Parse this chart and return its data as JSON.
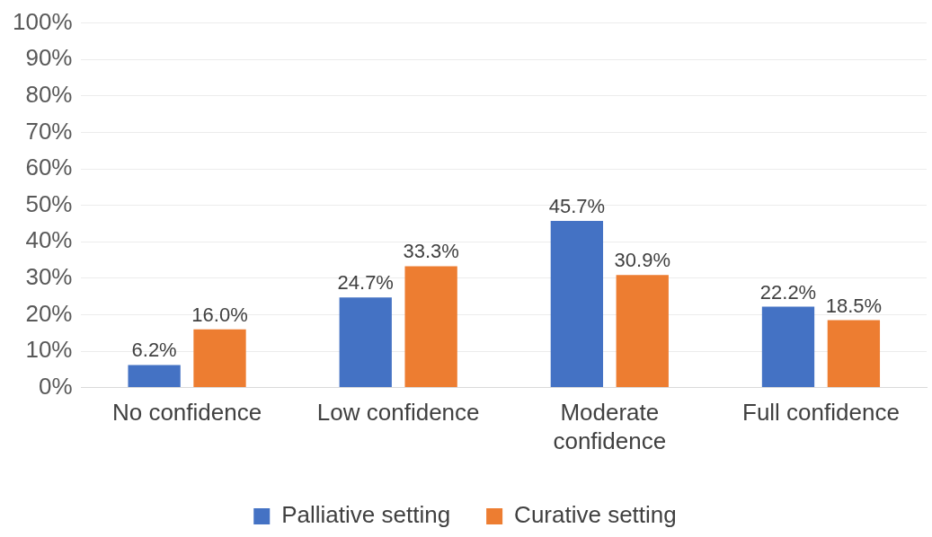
{
  "chart_data": {
    "type": "bar",
    "categories": [
      "No confidence",
      "Low confidence",
      "Moderate confidence",
      "Full confidence"
    ],
    "series": [
      {
        "name": "Palliative setting",
        "color": "#4472c4",
        "values": [
          6.2,
          24.7,
          45.7,
          22.2
        ],
        "value_labels": [
          "6.2%",
          "24.7%",
          "45.7%",
          "22.2%"
        ]
      },
      {
        "name": "Curative setting",
        "color": "#ed7d31",
        "values": [
          16.0,
          33.3,
          30.9,
          18.5
        ],
        "value_labels": [
          "16.0%",
          "33.3%",
          "30.9%",
          "18.5%"
        ]
      }
    ],
    "ylim": [
      0,
      100
    ],
    "yticks": [
      {
        "value": 0,
        "label": "0%"
      },
      {
        "value": 10,
        "label": "10%"
      },
      {
        "value": 20,
        "label": "20%"
      },
      {
        "value": 30,
        "label": "30%"
      },
      {
        "value": 40,
        "label": "40%"
      },
      {
        "value": 50,
        "label": "50%"
      },
      {
        "value": 60,
        "label": "60%"
      },
      {
        "value": 70,
        "label": "70%"
      },
      {
        "value": 80,
        "label": "80%"
      },
      {
        "value": 90,
        "label": "90%"
      },
      {
        "value": 100,
        "label": "100%"
      }
    ],
    "grid": "y",
    "legend": "bottom"
  }
}
